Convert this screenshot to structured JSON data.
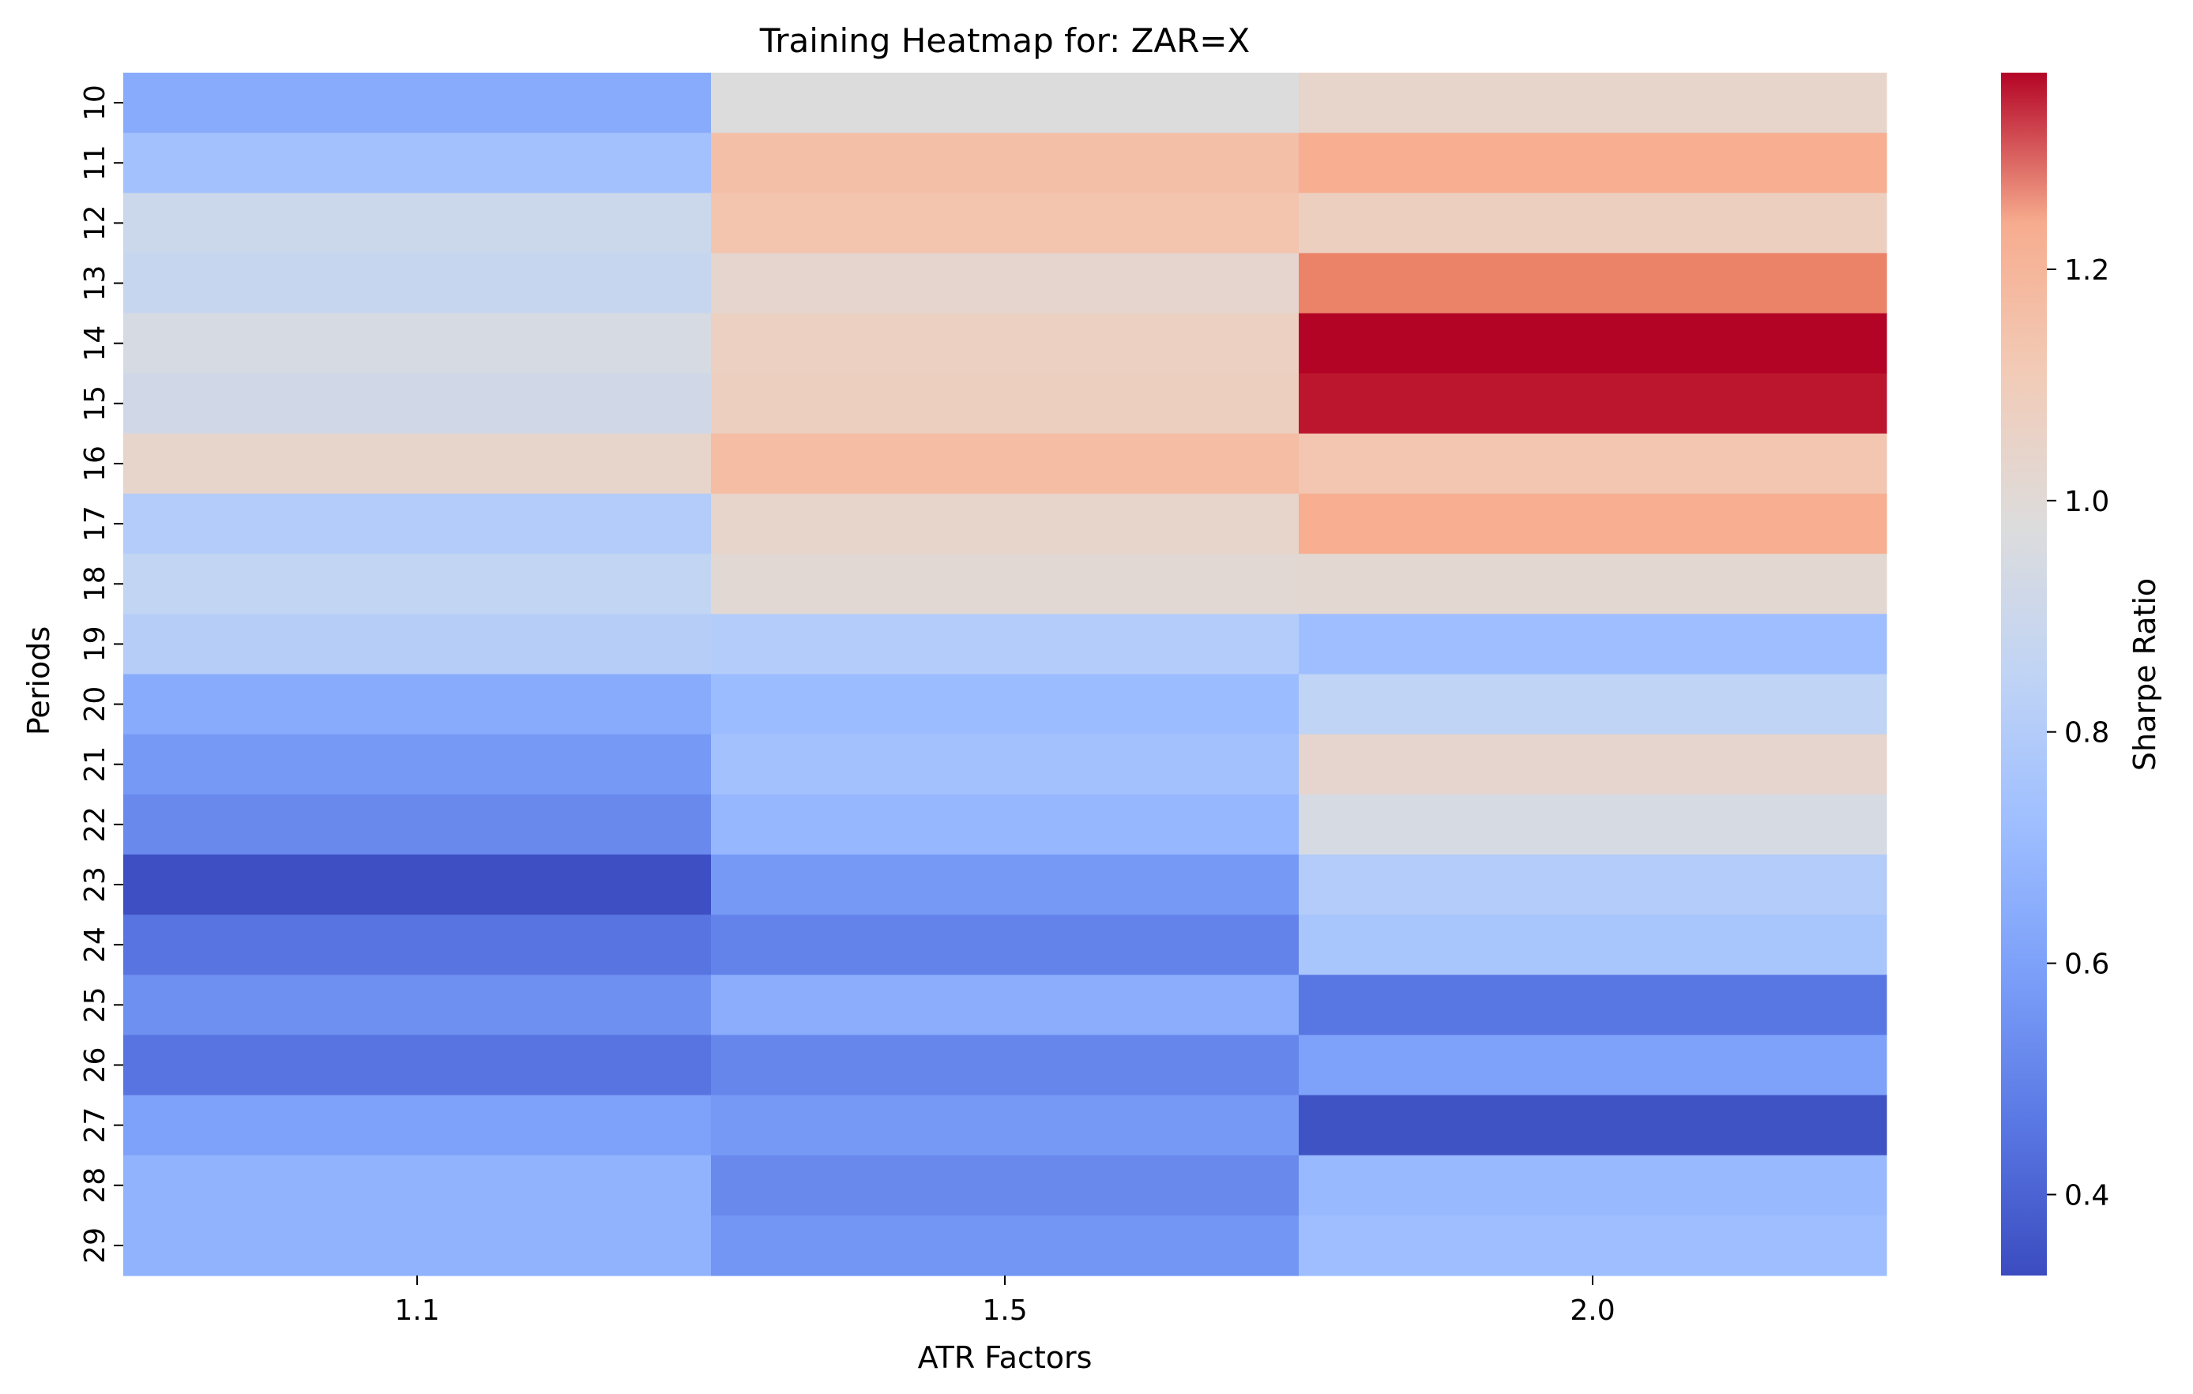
{
  "chart_data": {
    "type": "heatmap",
    "title": "Training Heatmap for: ZAR=X",
    "xlabel": "ATR Factors",
    "ylabel": "Periods",
    "x": [
      "1.1",
      "1.5",
      "2.0"
    ],
    "y": [
      "10",
      "11",
      "12",
      "13",
      "14",
      "15",
      "16",
      "17",
      "18",
      "19",
      "20",
      "21",
      "22",
      "23",
      "24",
      "25",
      "26",
      "27",
      "28",
      "29"
    ],
    "values": [
      [
        0.64,
        0.98,
        1.04
      ],
      [
        0.74,
        1.16,
        1.23
      ],
      [
        0.9,
        1.14,
        1.08
      ],
      [
        0.88,
        1.03,
        1.29
      ],
      [
        0.95,
        1.07,
        1.37
      ],
      [
        0.92,
        1.08,
        1.36
      ],
      [
        1.04,
        1.17,
        1.13
      ],
      [
        0.8,
        1.04,
        1.23
      ],
      [
        0.86,
        1.01,
        1.02
      ],
      [
        0.81,
        0.8,
        0.72
      ],
      [
        0.64,
        0.71,
        0.85
      ],
      [
        0.57,
        0.74,
        1.03
      ],
      [
        0.52,
        0.69,
        0.95
      ],
      [
        0.34,
        0.57,
        0.8
      ],
      [
        0.45,
        0.5,
        0.76
      ],
      [
        0.54,
        0.65,
        0.46
      ],
      [
        0.45,
        0.51,
        0.6
      ],
      [
        0.6,
        0.57,
        0.35
      ],
      [
        0.67,
        0.52,
        0.7
      ],
      [
        0.67,
        0.56,
        0.72
      ]
    ],
    "colorbar": {
      "label": "Sharpe Ratio",
      "range": [
        0.33,
        1.37
      ],
      "ticks": [
        "0.4",
        "0.6",
        "0.8",
        "1.0",
        "1.2"
      ],
      "colormap": "coolwarm"
    }
  }
}
